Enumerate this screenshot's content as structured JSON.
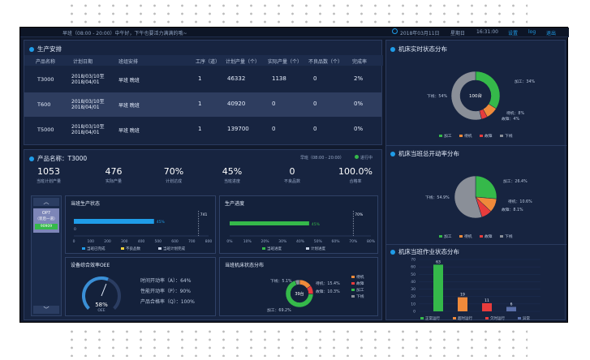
{
  "topbar": {
    "greeting": "早班（08:00 - 20:00）中午好，下午也要活力满满的哦~",
    "date": "2018年03月11日",
    "weekday": "星期日",
    "time": "16:31:00",
    "settings": "设置",
    "log": "log",
    "logout": "退出"
  },
  "schedule": {
    "title": "生产安排",
    "headers": [
      "产品名称",
      "计划日期",
      "班组安排",
      "工序（道）",
      "计划产量（个）",
      "实际产量（个）",
      "不良品数（个）",
      "完成率"
    ],
    "rows": [
      [
        "T3000",
        "2018/03/10至",
        "2018/04/01",
        "早班 晚班",
        "1",
        "46332",
        "1138",
        "0",
        "2%"
      ],
      [
        "T600",
        "2018/03/10至",
        "2018/04/01",
        "早班 晚班",
        "1",
        "40920",
        "0",
        "0",
        "0%"
      ],
      [
        "T5000",
        "2018/03/10至",
        "2018/04/01",
        "早班 晚班",
        "1",
        "139700",
        "0",
        "0",
        "0%"
      ]
    ]
  },
  "product": {
    "title": "产品名称：T3000",
    "shift": "早班（08:00 - 20:00）",
    "status": "进行中",
    "stats": [
      {
        "value": "1053",
        "label": "当班计划产量"
      },
      {
        "value": "476",
        "label": "实际产量"
      },
      {
        "value": "70%",
        "label": "计划达成"
      },
      {
        "value": "45%",
        "label": "当班进度"
      },
      {
        "value": "0",
        "label": "不良品数"
      },
      {
        "value": "100.0%",
        "label": "合格率"
      }
    ],
    "device_card": {
      "line1": "OP7",
      "line2": "（装后一道）",
      "line3": "90909"
    }
  },
  "status_chart": {
    "title": "当班生产状态",
    "bar_value": 476,
    "bar_pct": "45%",
    "target": "741",
    "zero": "0",
    "ticks": [
      "0",
      "100",
      "200",
      "300",
      "400",
      "500",
      "600",
      "700",
      "800"
    ],
    "legend": [
      "当班已完成",
      "不良品数",
      "当班计划完成"
    ]
  },
  "progress_chart": {
    "title": "生产进度",
    "bar_pct_value": 45,
    "bar_pct": "45%",
    "target": "70%",
    "ticks": [
      "0%",
      "10%",
      "20%",
      "30%",
      "40%",
      "50%",
      "60%",
      "70%",
      "80%"
    ],
    "legend": [
      "当班进度",
      "计划进度"
    ]
  },
  "oee": {
    "title": "设备综合效率OEE",
    "value": "58%",
    "label": "OEE",
    "gauge_fraction": 0.58,
    "lines": [
      "时间开动率（A）：64%",
      "性能开动率（P）：90%",
      "产品合格率（Q）：100%"
    ]
  },
  "machine_status_small": {
    "title": "当班机床状态分布",
    "center": "39台",
    "labels": [
      "下线：5.1%",
      "待机：15.4%",
      "故障：10.3%",
      "加工：69.2%"
    ],
    "legend": [
      "待机",
      "故障",
      "加工",
      "下线"
    ]
  },
  "right_realtime": {
    "title": "机床实时状态分布",
    "center": "100台",
    "labels": [
      "加工：34%",
      "下线：54%",
      "待机：8%",
      "故障：4%"
    ],
    "legend": [
      "加工",
      "待机",
      "故障",
      "下线"
    ]
  },
  "right_utilization": {
    "title": "机床当班总开动率分布",
    "labels": [
      "加工：26.4%",
      "下线：54.9%",
      "待机：10.6%",
      "故障：8.1%"
    ],
    "legend": [
      "加工",
      "待机",
      "故障",
      "下线"
    ]
  },
  "right_jobs": {
    "title": "机床当班作业状态分布",
    "legend": [
      "正常运行",
      "超时运行",
      "欠时运行",
      "异常"
    ]
  },
  "colors": {
    "green": "#35b94a",
    "orange": "#f08a3a",
    "red": "#e83c3c",
    "gray": "#8a8f98",
    "blue": "#1f9ce8"
  },
  "chart_data": [
    {
      "type": "pie",
      "title": "机床实时状态分布",
      "categories": [
        "加工",
        "待机",
        "故障",
        "下线"
      ],
      "values": [
        34,
        8,
        4,
        54
      ]
    },
    {
      "type": "pie",
      "title": "机床当班总开动率分布",
      "categories": [
        "加工",
        "待机",
        "故障",
        "下线"
      ],
      "values": [
        26.4,
        10.6,
        8.1,
        54.9
      ]
    },
    {
      "type": "pie",
      "title": "当班机床状态分布",
      "categories": [
        "待机",
        "故障",
        "加工",
        "下线"
      ],
      "values": [
        15.4,
        10.3,
        69.2,
        5.1
      ]
    },
    {
      "type": "bar",
      "title": "机床当班作业状态分布",
      "categories": [
        "正常运行",
        "超时运行",
        "欠时运行",
        "异常"
      ],
      "values": [
        63,
        19,
        11,
        6
      ],
      "ylim": [
        0,
        70
      ],
      "yticks": [
        "0",
        "10",
        "20",
        "30",
        "40",
        "50",
        "60",
        "70"
      ]
    }
  ]
}
